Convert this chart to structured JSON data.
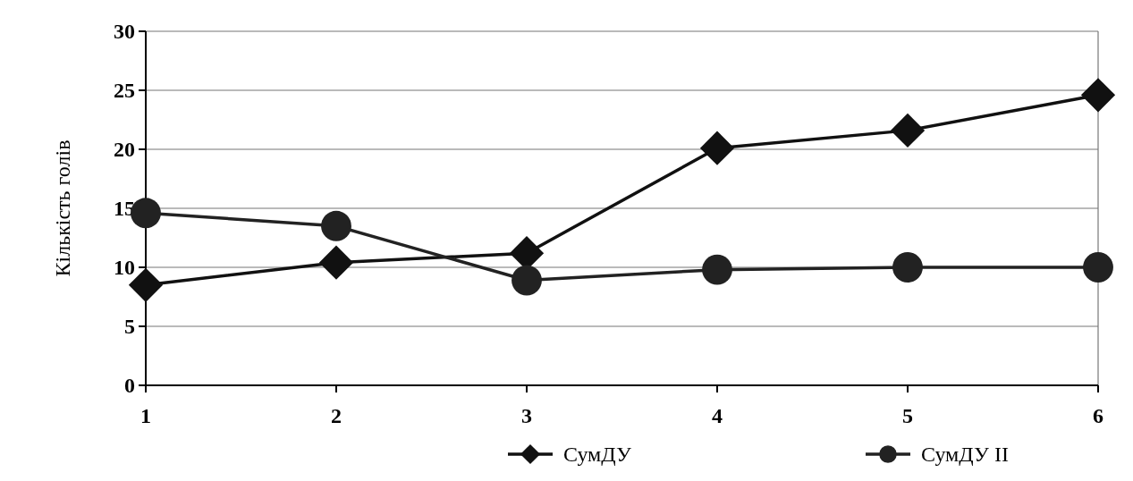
{
  "chart_data": {
    "type": "line",
    "ylabel": "Кількість голів",
    "x": [
      1,
      2,
      3,
      4,
      5,
      6
    ],
    "xlim": [
      1,
      6
    ],
    "xticks": [
      1,
      2,
      3,
      4,
      5,
      6
    ],
    "ylim": [
      0,
      30
    ],
    "yticks": [
      0,
      5,
      10,
      15,
      20,
      25,
      30
    ],
    "grid": "y",
    "legend": "bottom",
    "line_style": "solid",
    "series": [
      {
        "name": "СумДУ",
        "color": "#111111",
        "marker": "diamond",
        "values": [
          8.5,
          10.4,
          11.2,
          20.1,
          21.6,
          24.6
        ]
      },
      {
        "name": "СумДУ II",
        "color": "#222222",
        "marker": "circle",
        "values": [
          14.6,
          13.5,
          8.9,
          9.8,
          10,
          10
        ]
      }
    ]
  }
}
